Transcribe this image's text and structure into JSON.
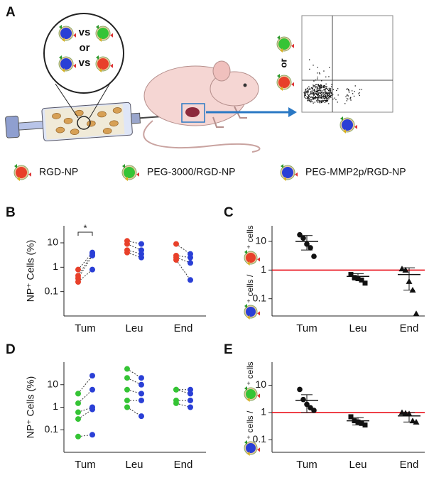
{
  "figure": {
    "panel_labels": [
      "A",
      "B",
      "C",
      "D",
      "E"
    ],
    "magnified_view": [
      "vs",
      "or",
      "vs"
    ],
    "flow_plot_or": "or",
    "legend": [
      {
        "name": "RGD-NP",
        "color": "#e8402a"
      },
      {
        "name": "PEG-3000/RGD-NP",
        "color": "#35c435"
      },
      {
        "name": "PEG-MMP2p/RGD-NP",
        "color": "#2a3fd6"
      }
    ]
  },
  "chart_data": [
    {
      "type": "paired",
      "ylabel": "NP⁺ Cells (%)",
      "categories": [
        "Tum",
        "Leu",
        "End"
      ],
      "log_scale": true,
      "ylim": [
        0.01,
        50
      ],
      "yticks": [
        0.1,
        1,
        10
      ],
      "series": [
        {
          "color": "#e8402a",
          "values": [
            [
              0.8,
              0.45,
              0.35,
              0.25
            ],
            [
              12,
              9,
              5,
              4
            ],
            [
              9,
              3,
              2.5,
              2
            ]
          ]
        },
        {
          "color": "#2a3fd6",
          "values": [
            [
              4,
              3.5,
              3,
              0.8
            ],
            [
              9,
              5,
              3.5,
              2.5
            ],
            [
              3.5,
              2.5,
              1.5,
              0.3
            ]
          ]
        }
      ],
      "annotation": "*"
    },
    {
      "type": "ratio",
      "ylabel": [
        "⁺ cells /",
        "⁺ cells"
      ],
      "ratio_colors": [
        "#2a3fd6",
        "#e8402a"
      ],
      "categories": [
        "Tum",
        "Leu",
        "End"
      ],
      "log_scale": true,
      "ylim": [
        0.025,
        35
      ],
      "yticks": [
        0.1,
        1,
        10
      ],
      "markers": [
        "circle",
        "square",
        "triangle"
      ],
      "values": [
        [
          17,
          13,
          8,
          6,
          3
        ],
        [
          0.7,
          0.55,
          0.5,
          0.45,
          0.35
        ],
        [
          1.1,
          1.0,
          0.4,
          0.2,
          0.03
        ]
      ],
      "mean": [
        10,
        0.6,
        0.7
      ],
      "err_low": [
        5,
        0.45,
        0.2
      ],
      "err_high": [
        16,
        0.75,
        1.2
      ],
      "hline": 1,
      "hline_color": "#e8000b"
    },
    {
      "type": "paired",
      "ylabel": "NP⁺ Cells (%)",
      "categories": [
        "Tum",
        "Leu",
        "End"
      ],
      "log_scale": true,
      "ylim": [
        0.01,
        100
      ],
      "yticks": [
        0.1,
        1,
        10
      ],
      "series": [
        {
          "color": "#35c435",
          "values": [
            [
              4,
              1.5,
              0.6,
              0.3,
              0.05
            ],
            [
              50,
              20,
              6,
              2,
              1
            ],
            [
              6,
              6,
              2,
              1.5
            ]
          ]
        },
        {
          "color": "#2a3fd6",
          "values": [
            [
              25,
              6,
              1,
              0.8,
              0.06
            ],
            [
              20,
              10,
              4,
              2,
              0.4
            ],
            [
              6,
              4,
              2,
              1
            ]
          ]
        }
      ]
    },
    {
      "type": "ratio",
      "ylabel": [
        "⁺ cells /",
        "⁺ cells"
      ],
      "ratio_colors": [
        "#2a3fd6",
        "#35c435"
      ],
      "categories": [
        "Tum",
        "Leu",
        "End"
      ],
      "log_scale": true,
      "ylim": [
        0.035,
        70
      ],
      "yticks": [
        0.1,
        1,
        10
      ],
      "markers": [
        "circle",
        "square",
        "triangle"
      ],
      "values": [
        [
          7,
          3,
          2,
          1.5,
          1.2
        ],
        [
          0.7,
          0.5,
          0.45,
          0.4,
          0.35
        ],
        [
          1.0,
          0.95,
          0.9,
          0.5,
          0.45
        ]
      ],
      "mean": [
        2.8,
        0.5,
        0.75
      ],
      "err_low": [
        1,
        0.35,
        0.45
      ],
      "err_high": [
        4.5,
        0.65,
        1.0
      ],
      "hline": 1,
      "hline_color": "#e8000b"
    }
  ]
}
